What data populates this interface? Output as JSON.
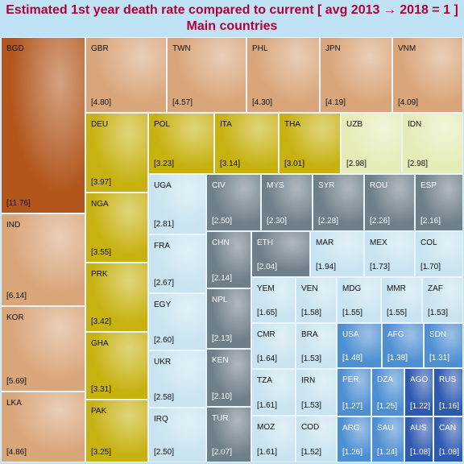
{
  "chart_data": {
    "type": "treemap",
    "title": "Estimated 1st year death rate compared to current [ avg 2013 → 2018 = 1 ]",
    "subtitle": "Main countries",
    "items": [
      {
        "code": "BGD",
        "value": 11.76
      },
      {
        "code": "IND",
        "value": 6.14
      },
      {
        "code": "KOR",
        "value": 5.69
      },
      {
        "code": "LKA",
        "value": 4.86
      },
      {
        "code": "GBR",
        "value": 4.8
      },
      {
        "code": "TWN",
        "value": 4.57
      },
      {
        "code": "PHL",
        "value": 4.3
      },
      {
        "code": "JPN",
        "value": 4.19
      },
      {
        "code": "VNM",
        "value": 4.09
      },
      {
        "code": "DEU",
        "value": 3.97
      },
      {
        "code": "NGA",
        "value": 3.55
      },
      {
        "code": "PRK",
        "value": 3.42
      },
      {
        "code": "GHA",
        "value": 3.31
      },
      {
        "code": "PAK",
        "value": 3.25
      },
      {
        "code": "POL",
        "value": 3.23
      },
      {
        "code": "ITA",
        "value": 3.14
      },
      {
        "code": "THA",
        "value": 3.01
      },
      {
        "code": "UZB",
        "value": 2.98
      },
      {
        "code": "IDN",
        "value": 2.98
      },
      {
        "code": "UGA",
        "value": 2.81
      },
      {
        "code": "FRA",
        "value": 2.67
      },
      {
        "code": "EGY",
        "value": 2.6
      },
      {
        "code": "UKR",
        "value": 2.58
      },
      {
        "code": "IRQ",
        "value": 2.5
      },
      {
        "code": "CIV",
        "value": 2.5
      },
      {
        "code": "MYS",
        "value": 2.3
      },
      {
        "code": "SYR",
        "value": 2.28
      },
      {
        "code": "ROU",
        "value": 2.26
      },
      {
        "code": "ESP",
        "value": 2.16
      },
      {
        "code": "CHN",
        "value": 2.14
      },
      {
        "code": "NPL",
        "value": 2.13
      },
      {
        "code": "KEN",
        "value": 2.1
      },
      {
        "code": "TUR",
        "value": 2.07
      },
      {
        "code": "ETH",
        "value": 2.04
      },
      {
        "code": "MAR",
        "value": 1.94
      },
      {
        "code": "MEX",
        "value": 1.73
      },
      {
        "code": "COL",
        "value": 1.7
      },
      {
        "code": "YEM",
        "value": 1.65
      },
      {
        "code": "VEN",
        "value": 1.58
      },
      {
        "code": "MDG",
        "value": 1.55
      },
      {
        "code": "MMR",
        "value": 1.55
      },
      {
        "code": "ZAF",
        "value": 1.53
      },
      {
        "code": "CMR",
        "value": 1.64
      },
      {
        "code": "BRA",
        "value": 1.53
      },
      {
        "code": "TZA",
        "value": 1.61
      },
      {
        "code": "IRN",
        "value": 1.53
      },
      {
        "code": "MOZ",
        "value": 1.61
      },
      {
        "code": "COD",
        "value": 1.52
      },
      {
        "code": "USA",
        "value": 1.48
      },
      {
        "code": "AFG",
        "value": 1.38
      },
      {
        "code": "SDN",
        "value": 1.31
      },
      {
        "code": "PER",
        "value": 1.27
      },
      {
        "code": "DZA",
        "value": 1.25
      },
      {
        "code": "AGO",
        "value": 1.22
      },
      {
        "code": "RUS",
        "value": 1.16
      },
      {
        "code": "ARG",
        "value": 1.26
      },
      {
        "code": "SAU",
        "value": 1.24
      },
      {
        "code": "AUS",
        "value": 1.08
      },
      {
        "code": "CAN",
        "value": 1.08
      }
    ],
    "colors": {
      "orange_dark": "#b2561c",
      "orange": "#d9a57a",
      "gold": "#c8b212",
      "pale_yellow": "#e6ecb8",
      "pale_blue": "#c9e4f0",
      "gray": "#6f7f8a",
      "blue": "#4e8fd3",
      "navy": "#2e59b0",
      "title": "#b3003b"
    }
  }
}
